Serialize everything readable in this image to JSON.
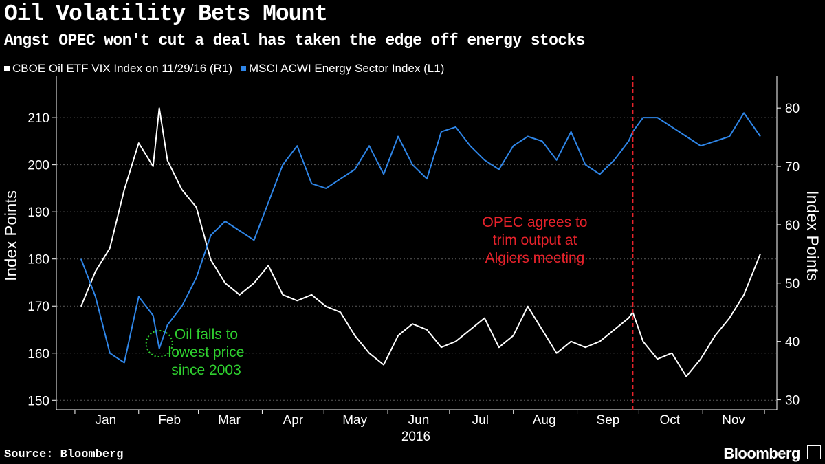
{
  "header": {
    "title": "Oil Volatility Bets Mount",
    "subtitle": "Angst OPEC won't cut a deal has taken the edge off energy stocks"
  },
  "footer": {
    "source": "Source: Bloomberg",
    "brand": "Bloomberg"
  },
  "colors": {
    "background": "#000000",
    "vix": "#ffffff",
    "energy": "#2f86e8",
    "annotation_red": "#e8222b",
    "annotation_green": "#2fd12f",
    "grid": "#5a5a5a"
  },
  "chart_data": {
    "type": "line",
    "year_label": "2016",
    "months": [
      "Jan",
      "Feb",
      "Mar",
      "Apr",
      "May",
      "Jun",
      "Jul",
      "Aug",
      "Sep",
      "Oct",
      "Nov"
    ],
    "y_left": {
      "label": "Index Points",
      "ticks": [
        150,
        160,
        170,
        180,
        190,
        200,
        210
      ],
      "lim": [
        148,
        216
      ]
    },
    "y_right": {
      "label": "Index Points",
      "ticks": [
        30,
        40,
        50,
        60,
        70,
        80
      ],
      "lim": [
        28.3,
        83.2
      ]
    },
    "grid": true,
    "legend_position": "top-left",
    "series": [
      {
        "name": "CBOE Oil ETF VIX Index on 11/29/16 (R1)",
        "axis": "right",
        "color": "#ffffff",
        "x": [
          "2016-01-04",
          "2016-01-11",
          "2016-01-18",
          "2016-01-25",
          "2016-02-01",
          "2016-02-08",
          "2016-02-11",
          "2016-02-15",
          "2016-02-22",
          "2016-02-29",
          "2016-03-07",
          "2016-03-14",
          "2016-03-21",
          "2016-03-28",
          "2016-04-04",
          "2016-04-11",
          "2016-04-18",
          "2016-04-25",
          "2016-05-02",
          "2016-05-09",
          "2016-05-16",
          "2016-05-23",
          "2016-05-30",
          "2016-06-06",
          "2016-06-13",
          "2016-06-20",
          "2016-06-27",
          "2016-07-04",
          "2016-07-11",
          "2016-07-18",
          "2016-07-25",
          "2016-08-01",
          "2016-08-08",
          "2016-08-15",
          "2016-08-22",
          "2016-08-29",
          "2016-09-05",
          "2016-09-12",
          "2016-09-19",
          "2016-09-26",
          "2016-09-28",
          "2016-10-03",
          "2016-10-10",
          "2016-10-17",
          "2016-10-24",
          "2016-10-31",
          "2016-11-07",
          "2016-11-14",
          "2016-11-21",
          "2016-11-29"
        ],
        "values": [
          46,
          52,
          56,
          66,
          74,
          70,
          80,
          71,
          66,
          63,
          54,
          50,
          48,
          50,
          53,
          48,
          47,
          48,
          46,
          45,
          41,
          38,
          36,
          41,
          43,
          42,
          39,
          40,
          42,
          44,
          39,
          41,
          46,
          42,
          38,
          40,
          39,
          40,
          42,
          44,
          45,
          40,
          37,
          38,
          34,
          37,
          41,
          44,
          48,
          55
        ]
      },
      {
        "name": "MSCI ACWI Energy Sector Index (L1)",
        "axis": "left",
        "color": "#2f86e8",
        "x": [
          "2016-01-04",
          "2016-01-11",
          "2016-01-18",
          "2016-01-25",
          "2016-02-01",
          "2016-02-08",
          "2016-02-11",
          "2016-02-15",
          "2016-02-22",
          "2016-02-29",
          "2016-03-07",
          "2016-03-14",
          "2016-03-21",
          "2016-03-28",
          "2016-04-04",
          "2016-04-11",
          "2016-04-18",
          "2016-04-25",
          "2016-05-02",
          "2016-05-09",
          "2016-05-16",
          "2016-05-23",
          "2016-05-30",
          "2016-06-06",
          "2016-06-13",
          "2016-06-20",
          "2016-06-27",
          "2016-07-04",
          "2016-07-11",
          "2016-07-18",
          "2016-07-25",
          "2016-08-01",
          "2016-08-08",
          "2016-08-15",
          "2016-08-22",
          "2016-08-29",
          "2016-09-05",
          "2016-09-12",
          "2016-09-19",
          "2016-09-26",
          "2016-09-28",
          "2016-10-03",
          "2016-10-10",
          "2016-10-17",
          "2016-10-24",
          "2016-10-31",
          "2016-11-07",
          "2016-11-14",
          "2016-11-21",
          "2016-11-29"
        ],
        "values": [
          180,
          172,
          160,
          158,
          172,
          168,
          161,
          166,
          170,
          176,
          185,
          188,
          186,
          184,
          192,
          200,
          204,
          196,
          195,
          197,
          199,
          204,
          198,
          206,
          200,
          197,
          207,
          208,
          204,
          201,
          199,
          204,
          206,
          205,
          201,
          207,
          200,
          198,
          201,
          205,
          207,
          210,
          210,
          208,
          206,
          204,
          205,
          206,
          211,
          206
        ]
      }
    ],
    "annotations": [
      {
        "text_lines": [
          "OPEC agrees to",
          "trim output at",
          "Algiers meeting"
        ],
        "date": "2016-09-28",
        "style": "red-dashed-vertical"
      },
      {
        "text_lines": [
          "Oil falls to",
          "lowest price",
          "since 2003"
        ],
        "date": "2016-02-11",
        "style": "green-dotted-circle"
      }
    ]
  }
}
